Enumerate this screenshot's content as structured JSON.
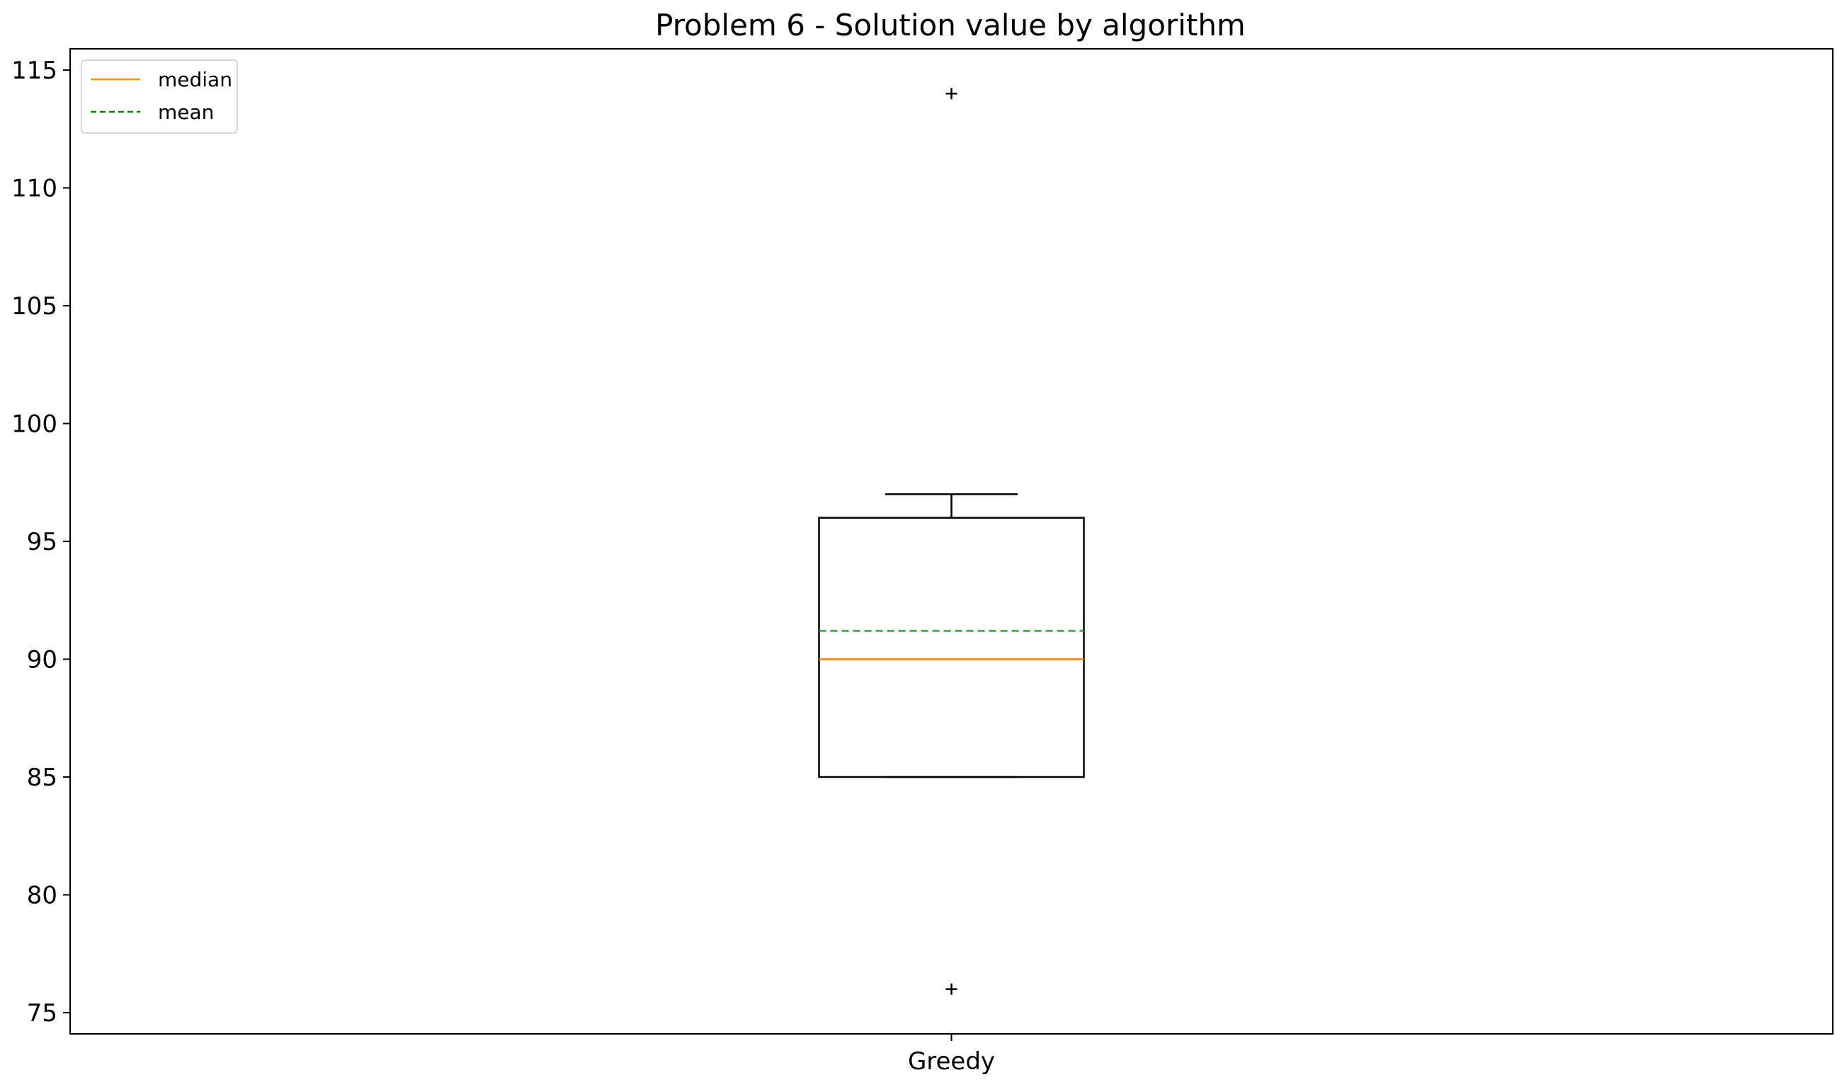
{
  "chart_data": {
    "type": "box",
    "title": "Problem 6 - Solution value by algorithm",
    "xlabel": "",
    "ylabel": "",
    "ylim": [
      74.1,
      115.9
    ],
    "yticks": [
      75,
      80,
      85,
      90,
      95,
      100,
      105,
      110,
      115
    ],
    "categories": [
      "Greedy"
    ],
    "boxes": [
      {
        "category": "Greedy",
        "whisker_low": 85,
        "q1": 85,
        "median": 90,
        "mean": 91.2,
        "q3": 96,
        "whisker_high": 97,
        "outliers": [
          76,
          114
        ]
      }
    ],
    "legend": {
      "placement": "top-left",
      "entries": [
        {
          "label": "median",
          "style": "solid",
          "color": "#ff9900"
        },
        {
          "label": "mean",
          "style": "dashed",
          "color": "#008000"
        }
      ]
    },
    "grid": false,
    "colors": {
      "box": "#000000",
      "median": "#ff7f0e",
      "mean": "#2ca02c",
      "legend_median": "#ffa500",
      "legend_mean": "#008000"
    }
  }
}
